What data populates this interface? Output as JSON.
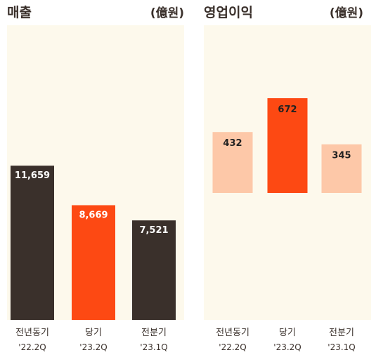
{
  "chart_data": [
    {
      "type": "bar",
      "title": "매출",
      "unit": "(億원)",
      "categories": [
        "전년동기",
        "당기",
        "전분기"
      ],
      "periods": [
        "'22.2Q",
        "'23.2Q",
        "'23.1Q"
      ],
      "values": [
        11659,
        8669,
        7521
      ],
      "value_labels": [
        "11,659",
        "8,669",
        "7,521"
      ],
      "colors": [
        "#3a302b",
        "#fd4913",
        "#3a302b"
      ],
      "ylim": [
        0,
        20000
      ]
    },
    {
      "type": "bar",
      "title": "영업이익",
      "unit": "(億원)",
      "categories": [
        "전년동기",
        "당기",
        "전분기"
      ],
      "periods": [
        "'22.2Q",
        "'23.2Q",
        "'23.1Q"
      ],
      "values": [
        432,
        672,
        345
      ],
      "value_labels": [
        "432",
        "672",
        "345"
      ],
      "colors": [
        "#fdc8a8",
        "#fd4913",
        "#fdc8a8"
      ],
      "label_colors": [
        "#222222",
        "#222222",
        "#222222"
      ],
      "ylim": [
        0,
        1100
      ]
    }
  ]
}
